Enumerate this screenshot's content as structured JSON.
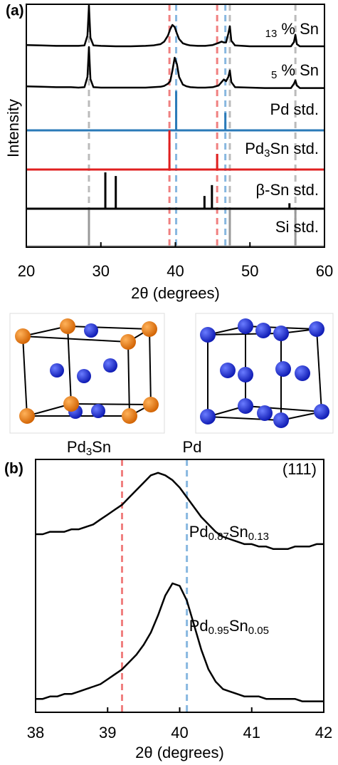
{
  "chart_data": [
    {
      "type": "line",
      "panel": "(a)",
      "xlabel": "2θ (degrees)",
      "ylabel": "Intensity",
      "xlim": [
        20,
        60
      ],
      "xticks": [
        20,
        30,
        40,
        50,
        60
      ],
      "ylim": [
        0,
        100
      ],
      "x": [
        20,
        22,
        24,
        26,
        27,
        27.8,
        28.2,
        28.4,
        28.6,
        29,
        30,
        32,
        34,
        36,
        37,
        38,
        38.5,
        39,
        39.3,
        39.6,
        39.9,
        40.2,
        40.5,
        41,
        41.5,
        42,
        43,
        44,
        45,
        45.8,
        46.2,
        46.5,
        46.8,
        47.1,
        47.3,
        47.5,
        48,
        50,
        52,
        54,
        55.5,
        55.9,
        56.1,
        56.3,
        56.7,
        58,
        60
      ],
      "series": [
        {
          "name": "13 % Sn",
          "color": "#000000",
          "values": [
            8,
            7,
            6,
            6,
            6,
            7,
            30,
            100,
            25,
            7,
            6,
            5,
            5,
            6,
            7,
            10,
            16,
            30,
            45,
            55,
            50,
            35,
            22,
            12,
            9,
            7,
            6,
            6,
            8,
            13,
            16,
            14,
            14,
            35,
            52,
            18,
            7,
            5,
            5,
            5,
            5,
            15,
            32,
            10,
            5,
            5,
            5
          ]
        },
        {
          "name": "5 % Sn",
          "color": "#000000",
          "values": [
            8,
            7,
            6,
            6,
            5,
            6,
            30,
            100,
            25,
            6,
            5,
            5,
            5,
            5,
            6,
            7,
            9,
            14,
            20,
            45,
            75,
            60,
            30,
            12,
            8,
            6,
            5,
            5,
            6,
            10,
            18,
            24,
            20,
            30,
            45,
            18,
            6,
            5,
            4,
            4,
            4,
            14,
            22,
            10,
            4,
            4,
            4
          ]
        },
        {
          "name": "Pd std.",
          "type": "stick",
          "color": "#2a7ab8",
          "x": [
            40.1,
            46.7
          ],
          "values": [
            100,
            45
          ]
        },
        {
          "name": "Pd3Sn std.",
          "type": "stick",
          "color": "#e02020",
          "x": [
            39.2,
            45.6
          ],
          "values": [
            100,
            40
          ]
        },
        {
          "name": "β-Sn std.",
          "type": "stick",
          "color": "#000000",
          "x": [
            30.6,
            32.0,
            43.9,
            44.9,
            55.3
          ],
          "values": [
            100,
            90,
            35,
            65,
            15
          ]
        },
        {
          "name": "Si std.",
          "type": "stick",
          "color": "#999999",
          "x": [
            28.4,
            47.3,
            56.1
          ],
          "values": [
            100,
            100,
            100
          ]
        }
      ],
      "reference_lines": [
        {
          "x": 28.4,
          "color": "#bbbbbb"
        },
        {
          "x": 39.2,
          "color": "#f08080"
        },
        {
          "x": 40.1,
          "color": "#88b8e0"
        },
        {
          "x": 45.6,
          "color": "#f08080"
        },
        {
          "x": 46.7,
          "color": "#88b8e0"
        },
        {
          "x": 47.3,
          "color": "#bbbbbb"
        },
        {
          "x": 56.1,
          "color": "#bbbbbb"
        }
      ]
    },
    {
      "type": "line",
      "panel": "(b)",
      "annotation": "(111)",
      "xlabel": "2θ (degrees)",
      "xlim": [
        38,
        42
      ],
      "xticks": [
        38,
        39,
        40,
        41,
        42
      ],
      "ylim": [
        0,
        100
      ],
      "x": [
        38.0,
        38.1,
        38.2,
        38.3,
        38.4,
        38.5,
        38.6,
        38.7,
        38.8,
        38.9,
        39.0,
        39.1,
        39.2,
        39.3,
        39.4,
        39.5,
        39.6,
        39.7,
        39.8,
        39.9,
        40.0,
        40.1,
        40.2,
        40.3,
        40.4,
        40.5,
        40.6,
        40.7,
        40.8,
        40.9,
        41.0,
        41.1,
        41.2,
        41.3,
        41.4,
        41.5,
        41.6,
        41.7,
        41.8,
        41.9,
        42.0
      ],
      "series": [
        {
          "name": "Pd0.87Sn0.13",
          "color": "#000000",
          "values": [
            71,
            71,
            72,
            72,
            72,
            73,
            73,
            74,
            75,
            77,
            79,
            81,
            83,
            86,
            89,
            92,
            95,
            96,
            95,
            93,
            90,
            86,
            82,
            78,
            75,
            72,
            70,
            69,
            68,
            67,
            67,
            66,
            66,
            65,
            65,
            65,
            66,
            66,
            66,
            67,
            67
          ]
        },
        {
          "name": "Pd0.95Sn0.05",
          "color": "#000000",
          "values": [
            4,
            4,
            5,
            5,
            6,
            6,
            7,
            8,
            9,
            10,
            12,
            14,
            16,
            19,
            22,
            26,
            31,
            38,
            46,
            51,
            50,
            44,
            34,
            24,
            16,
            11,
            8,
            7,
            6,
            5,
            5,
            5,
            4,
            4,
            4,
            4,
            4,
            3,
            3,
            3,
            3
          ]
        }
      ],
      "reference_lines": [
        {
          "x": 39.2,
          "color": "#f08080"
        },
        {
          "x": 40.1,
          "color": "#88b8e0"
        }
      ]
    }
  ],
  "structures": [
    {
      "label": "Pd3Sn",
      "color": "#e03030"
    },
    {
      "label": "Pd",
      "color": "#3a8fc8"
    }
  ]
}
